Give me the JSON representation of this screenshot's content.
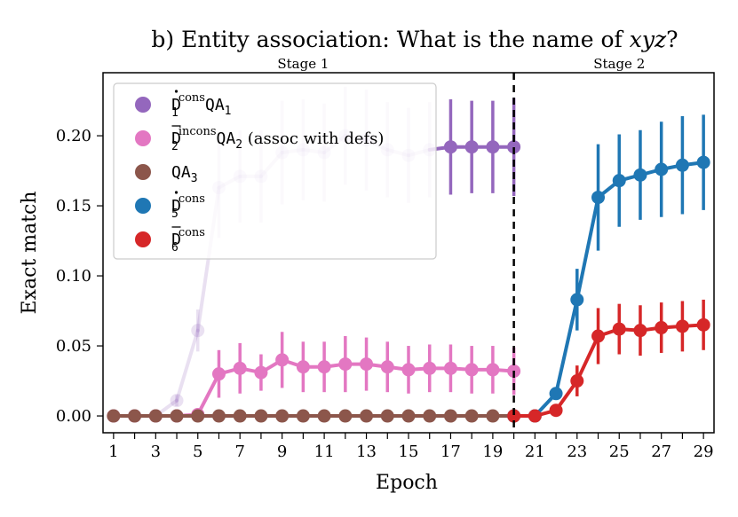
{
  "chart_data": {
    "type": "line",
    "title_prefix": "b) Entity association: What is the name of ",
    "title_var": "xyz",
    "title_suffix": "?",
    "xlabel": "Epoch",
    "ylabel": "Exact match",
    "xlim": [
      0.5,
      29.5
    ],
    "ylim": [
      -0.012,
      0.245
    ],
    "xticks": [
      1,
      3,
      5,
      7,
      9,
      11,
      13,
      15,
      17,
      19,
      21,
      23,
      25,
      27,
      29
    ],
    "yticks": [
      0.0,
      0.05,
      0.1,
      0.15,
      0.2
    ],
    "ytick_labels": [
      "0.00",
      "0.05",
      "0.10",
      "0.15",
      "0.20"
    ],
    "stage_divider_x": 20,
    "stages": [
      {
        "label": "Stage 1",
        "center_x": 10
      },
      {
        "label": "Stage 2",
        "center_x": 25
      }
    ],
    "series": [
      {
        "name": "D1 cons QA1",
        "legend": {
          "base": "D",
          "mark": "dot",
          "sub": "1",
          "sup": "cons",
          "tail": "QA",
          "tail_sub": "1",
          "extra": ""
        },
        "color": "#9467bd",
        "x": [
          1,
          2,
          3,
          4,
          5,
          6,
          7,
          8,
          9,
          10,
          11,
          12,
          13,
          14,
          15,
          16,
          17,
          18,
          19,
          20
        ],
        "y": [
          0.0,
          0.0,
          0.0,
          0.011,
          0.061,
          0.163,
          0.171,
          0.171,
          0.188,
          0.19,
          0.188,
          0.2,
          0.197,
          0.19,
          0.186,
          0.19,
          0.192,
          0.192,
          0.192,
          0.192
        ],
        "err": [
          0,
          0,
          0,
          0.004,
          0.015,
          0.036,
          0.033,
          0.033,
          0.037,
          0.036,
          0.035,
          0.035,
          0.036,
          0.034,
          0.034,
          0.034,
          0.034,
          0.033,
          0.033,
          0.035
        ],
        "faded_until": 16
      },
      {
        "name": "D2 incons QA2 (assoc with defs)",
        "legend": {
          "base": "D",
          "mark": "bar",
          "sub": "2",
          "sup": "incons",
          "tail": "QA",
          "tail_sub": "2",
          "extra": " (assoc with defs)"
        },
        "color": "#e377c2",
        "x": [
          1,
          2,
          3,
          4,
          5,
          6,
          7,
          8,
          9,
          10,
          11,
          12,
          13,
          14,
          15,
          16,
          17,
          18,
          19,
          20
        ],
        "y": [
          0.0,
          0.0,
          0.0,
          0.0,
          0.001,
          0.03,
          0.034,
          0.031,
          0.04,
          0.035,
          0.035,
          0.037,
          0.037,
          0.035,
          0.033,
          0.034,
          0.034,
          0.033,
          0.033,
          0.032
        ],
        "err": [
          0,
          0,
          0,
          0,
          0.001,
          0.017,
          0.018,
          0.013,
          0.02,
          0.018,
          0.018,
          0.02,
          0.019,
          0.018,
          0.017,
          0.017,
          0.017,
          0.017,
          0.017,
          0.017
        ],
        "faded_until": 0
      },
      {
        "name": "QA3",
        "legend": {
          "base": "",
          "mark": "",
          "sub": "",
          "sup": "",
          "tail": "QA",
          "tail_sub": "3",
          "extra": ""
        },
        "color": "#8c564b",
        "x": [
          1,
          2,
          3,
          4,
          5,
          6,
          7,
          8,
          9,
          10,
          11,
          12,
          13,
          14,
          15,
          16,
          17,
          18,
          19,
          20
        ],
        "y": [
          0,
          0,
          0,
          0,
          0,
          0,
          0,
          0,
          0,
          0,
          0,
          0,
          0,
          0,
          0,
          0,
          0,
          0,
          0,
          0
        ],
        "err": [
          0,
          0,
          0,
          0,
          0,
          0,
          0,
          0,
          0,
          0,
          0,
          0,
          0,
          0,
          0,
          0,
          0,
          0,
          0,
          0
        ],
        "faded_until": 0
      },
      {
        "name": "D5 cons",
        "legend": {
          "base": "D",
          "mark": "dot",
          "sub": "5",
          "sup": "cons",
          "tail": "",
          "tail_sub": "",
          "extra": ""
        },
        "color": "#1f77b4",
        "x": [
          20,
          21,
          22,
          23,
          24,
          25,
          26,
          27,
          28,
          29
        ],
        "y": [
          0.0,
          0.0,
          0.016,
          0.083,
          0.156,
          0.168,
          0.172,
          0.176,
          0.179,
          0.181
        ],
        "err": [
          0,
          0,
          0.004,
          0.022,
          0.038,
          0.033,
          0.032,
          0.034,
          0.035,
          0.034
        ],
        "faded_until": 0
      },
      {
        "name": "D6 cons",
        "legend": {
          "base": "D",
          "mark": "bar",
          "sub": "6",
          "sup": "cons",
          "tail": "",
          "tail_sub": "",
          "extra": ""
        },
        "color": "#d62728",
        "x": [
          20,
          21,
          22,
          23,
          24,
          25,
          26,
          27,
          28,
          29
        ],
        "y": [
          0.0,
          0.0,
          0.004,
          0.025,
          0.057,
          0.062,
          0.061,
          0.063,
          0.064,
          0.065
        ],
        "err": [
          0,
          0,
          0.003,
          0.011,
          0.02,
          0.018,
          0.018,
          0.018,
          0.018,
          0.018
        ],
        "faded_until": 0
      }
    ]
  }
}
